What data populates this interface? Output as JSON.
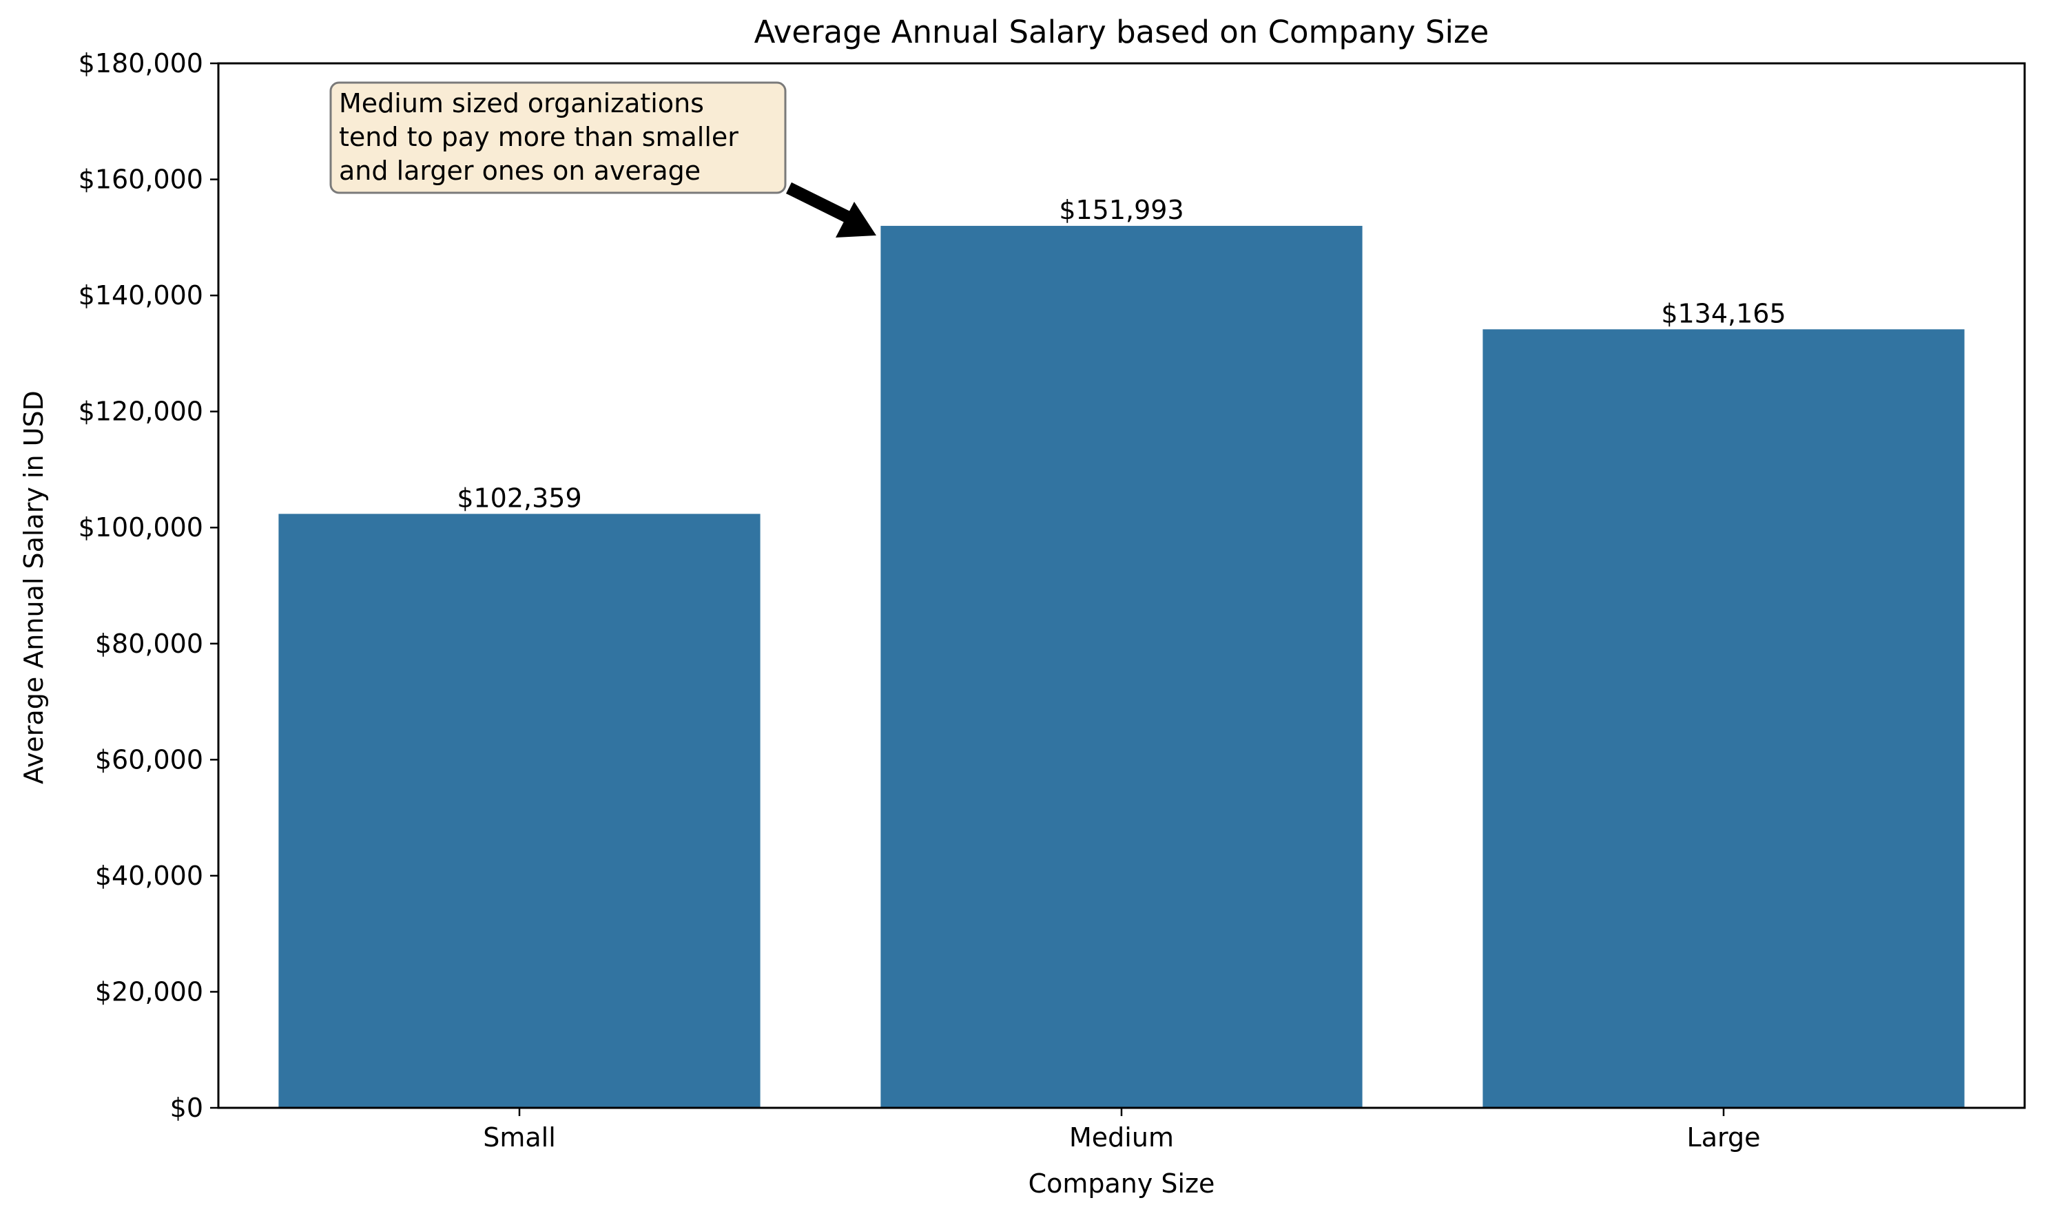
{
  "chart_data": {
    "type": "bar",
    "title": "Average Annual Salary based on Company Size",
    "xlabel": "Company Size",
    "ylabel": "Average Annual Salary in USD",
    "categories": [
      "Small",
      "Medium",
      "Large"
    ],
    "values": [
      102359,
      151993,
      134165
    ],
    "data_labels": [
      "$102,359",
      "$151,993",
      "$134,165"
    ],
    "ylim": [
      0,
      180000
    ],
    "yticks": [
      0,
      20000,
      40000,
      60000,
      80000,
      100000,
      120000,
      140000,
      160000,
      180000
    ],
    "ytick_labels": [
      "$0",
      "$20,000",
      "$40,000",
      "$60,000",
      "$80,000",
      "$100,000",
      "$120,000",
      "$140,000",
      "$160,000",
      "$180,000"
    ],
    "grid": false,
    "legend": "none",
    "bar_color": "#3274a1",
    "annotation": {
      "lines": [
        "Medium sized organizations",
        "tend to pay more than smaller",
        "and larger ones on average"
      ],
      "box_color": "#f9ecd5",
      "target_category": "Medium",
      "target_value": 151993
    }
  }
}
